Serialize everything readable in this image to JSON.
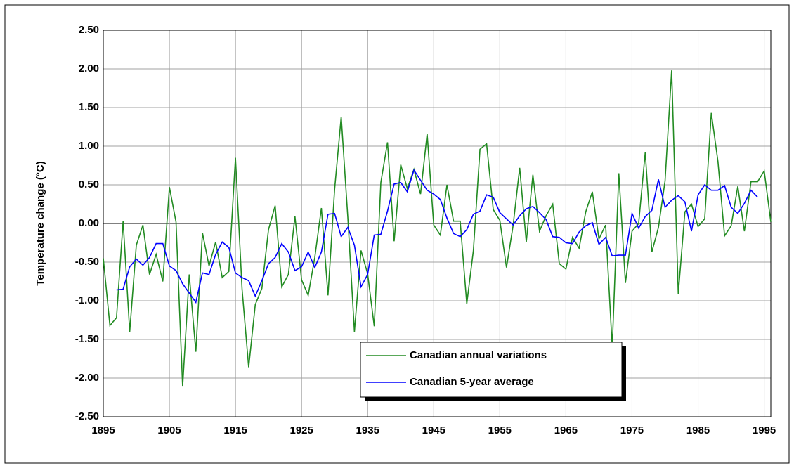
{
  "chart_data": {
    "type": "line",
    "ylabel": "Temperature change (°C)",
    "x": [
      1895,
      1896,
      1897,
      1898,
      1899,
      1900,
      1901,
      1902,
      1903,
      1904,
      1905,
      1906,
      1907,
      1908,
      1909,
      1910,
      1911,
      1912,
      1913,
      1914,
      1915,
      1916,
      1917,
      1918,
      1919,
      1920,
      1921,
      1922,
      1923,
      1924,
      1925,
      1926,
      1927,
      1928,
      1929,
      1930,
      1931,
      1932,
      1933,
      1934,
      1935,
      1936,
      1937,
      1938,
      1939,
      1940,
      1941,
      1942,
      1943,
      1944,
      1945,
      1946,
      1947,
      1948,
      1949,
      1950,
      1951,
      1952,
      1953,
      1954,
      1955,
      1956,
      1957,
      1958,
      1959,
      1960,
      1961,
      1962,
      1963,
      1964,
      1965,
      1966,
      1967,
      1968,
      1969,
      1970,
      1971,
      1972,
      1973,
      1974,
      1975,
      1976,
      1977,
      1978,
      1979,
      1980,
      1981,
      1982,
      1983,
      1984,
      1985,
      1986,
      1987,
      1988,
      1989,
      1990,
      1991,
      1992,
      1993,
      1994,
      1995,
      1996
    ],
    "series": [
      {
        "name": "Canadian annual variations",
        "color": "#228b22",
        "values": [
          -0.45,
          -1.32,
          -1.22,
          0.03,
          -1.4,
          -0.28,
          -0.02,
          -0.66,
          -0.4,
          -0.75,
          0.47,
          0.02,
          -2.11,
          -0.66,
          -1.66,
          -0.12,
          -0.55,
          -0.24,
          -0.7,
          -0.62,
          0.85,
          -0.85,
          -1.86,
          -1.05,
          -0.84,
          -0.08,
          0.23,
          -0.82,
          -0.66,
          0.09,
          -0.73,
          -0.93,
          -0.44,
          0.2,
          -0.93,
          0.44,
          1.38,
          0.08,
          -1.4,
          -0.35,
          -0.65,
          -1.33,
          0.53,
          1.05,
          -0.23,
          0.76,
          0.45,
          0.7,
          0.38,
          1.16,
          -0.02,
          -0.15,
          0.5,
          0.03,
          0.03,
          -1.04,
          -0.35,
          0.96,
          1.03,
          0.18,
          0.04,
          -0.57,
          -0.03,
          0.72,
          -0.24,
          0.63,
          -0.1,
          0.1,
          0.25,
          -0.52,
          -0.59,
          -0.18,
          -0.32,
          0.15,
          0.41,
          -0.2,
          -0.02,
          -1.6,
          0.65,
          -0.77,
          -0.1,
          0.0,
          0.92,
          -0.37,
          -0.05,
          0.55,
          1.98,
          -0.91,
          0.15,
          0.25,
          -0.04,
          0.06,
          1.43,
          0.8,
          -0.16,
          -0.03,
          0.48,
          -0.1,
          0.54,
          0.54,
          0.68,
          0.02
        ]
      },
      {
        "name": "Canadian 5-year average",
        "color": "#0000ff",
        "values": [
          null,
          null,
          -0.86,
          -0.85,
          -0.56,
          -0.46,
          -0.54,
          -0.44,
          -0.26,
          -0.26,
          -0.55,
          -0.61,
          -0.78,
          -0.9,
          -1.02,
          -0.64,
          -0.66,
          -0.4,
          -0.24,
          -0.31,
          -0.64,
          -0.7,
          -0.74,
          -0.94,
          -0.74,
          -0.52,
          -0.44,
          -0.26,
          -0.37,
          -0.61,
          -0.56,
          -0.37,
          -0.57,
          -0.37,
          0.12,
          0.13,
          -0.17,
          -0.05,
          -0.28,
          -0.82,
          -0.66,
          -0.15,
          -0.14,
          0.16,
          0.51,
          0.53,
          0.41,
          0.69,
          0.56,
          0.43,
          0.38,
          0.31,
          0.07,
          -0.13,
          -0.17,
          -0.08,
          0.12,
          0.16,
          0.37,
          0.34,
          0.14,
          0.06,
          -0.02,
          0.1,
          0.19,
          0.22,
          0.14,
          0.05,
          -0.17,
          -0.18,
          -0.25,
          -0.26,
          -0.11,
          -0.03,
          0.01,
          -0.27,
          -0.18,
          -0.42,
          -0.41,
          -0.41,
          0.13,
          -0.06,
          0.09,
          0.17,
          0.57,
          0.21,
          0.3,
          0.36,
          0.28,
          -0.1,
          0.37,
          0.5,
          0.43,
          0.43,
          0.49,
          0.21,
          0.13,
          0.26,
          0.43,
          0.34,
          null,
          null
        ]
      }
    ],
    "xlim": [
      1895,
      1996
    ],
    "xticks": [
      1895,
      1905,
      1915,
      1925,
      1935,
      1945,
      1955,
      1965,
      1975,
      1985,
      1995
    ],
    "ylim": [
      -2.5,
      2.5
    ],
    "yticks": [
      {
        "value": -2.5,
        "label": "-2.50"
      },
      {
        "value": -2,
        "label": "-2.00"
      },
      {
        "value": -1.5,
        "label": "-1.50"
      },
      {
        "value": -1,
        "label": "-1.00"
      },
      {
        "value": -0.5,
        "label": "-0.50"
      },
      {
        "value": 0,
        "label": "0.00"
      },
      {
        "value": 0.5,
        "label": "0.50"
      },
      {
        "value": 1,
        "label": "1.00"
      },
      {
        "value": 1.5,
        "label": "1.50"
      },
      {
        "value": 2,
        "label": "2.00"
      },
      {
        "value": 2.5,
        "label": "2.50"
      }
    ],
    "grid": true
  }
}
